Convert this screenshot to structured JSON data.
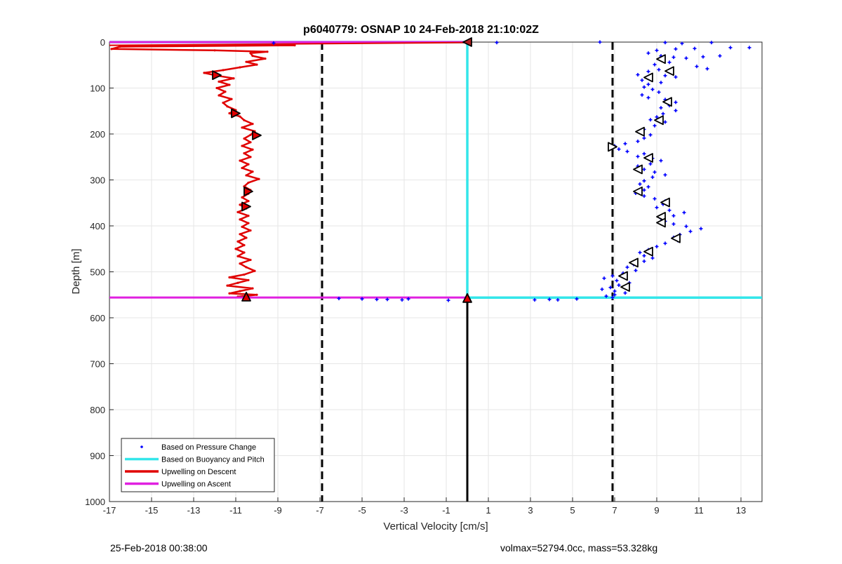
{
  "chart_data": {
    "type": "scatter",
    "title": "p6040779: OSNAP 10 24-Feb-2018 21:10:02Z",
    "xlabel": "Vertical Velocity [cm/s]",
    "ylabel": "Depth [m]",
    "xlim": [
      -17,
      14
    ],
    "ylim": [
      0,
      1000
    ],
    "y_reversed": true,
    "grid": true,
    "x_ticks": [
      -17,
      -15,
      -13,
      -11,
      -9,
      -7,
      -5,
      -3,
      -1,
      1,
      3,
      5,
      7,
      9,
      11,
      13
    ],
    "y_ticks": [
      0,
      100,
      200,
      300,
      400,
      500,
      600,
      700,
      800,
      900,
      1000
    ],
    "legend_position": "bottom-left",
    "colors": {
      "pressure": "#0000ff",
      "buoyancy": "#33e6ea",
      "descent": "#e00000",
      "ascent": "#e020e0",
      "reference": "#000000"
    },
    "reference_lines": [
      {
        "x": -6.9,
        "style": "dashed"
      },
      {
        "x": 6.9,
        "style": "dashed"
      }
    ],
    "vertical_segments": [
      {
        "x": 0,
        "y_from": 558,
        "y_to": 1000,
        "color": "reference"
      }
    ],
    "series": [
      {
        "name": "Based on Pressure Change",
        "kind": "points",
        "points": [
          [
            -9.2,
            2
          ],
          [
            1.4,
            1
          ],
          [
            6.3,
            0
          ],
          [
            9.4,
            1
          ],
          [
            10.2,
            3
          ],
          [
            11.6,
            1
          ],
          [
            13.4,
            12
          ],
          [
            12.5,
            12
          ],
          [
            10.8,
            14
          ],
          [
            9.9,
            15
          ],
          [
            9.0,
            18
          ],
          [
            8.6,
            24
          ],
          [
            9.2,
            30
          ],
          [
            9.8,
            33
          ],
          [
            10.4,
            35
          ],
          [
            11.2,
            32
          ],
          [
            12.0,
            30
          ],
          [
            9.6,
            44
          ],
          [
            8.9,
            49
          ],
          [
            10.9,
            53
          ],
          [
            11.4,
            58
          ],
          [
            9.1,
            60
          ],
          [
            8.6,
            64
          ],
          [
            8.1,
            71
          ],
          [
            9.4,
            73
          ],
          [
            9.9,
            76
          ],
          [
            8.3,
            83
          ],
          [
            9.2,
            88
          ],
          [
            8.6,
            92
          ],
          [
            8.4,
            98
          ],
          [
            8.8,
            103
          ],
          [
            9.1,
            109
          ],
          [
            8.3,
            115
          ],
          [
            8.6,
            121
          ],
          [
            9.4,
            125
          ],
          [
            9.9,
            131
          ],
          [
            9.6,
            138
          ],
          [
            9.2,
            143
          ],
          [
            9.9,
            149
          ],
          [
            9.3,
            156
          ],
          [
            9.0,
            163
          ],
          [
            8.7,
            169
          ],
          [
            9.4,
            174
          ],
          [
            8.9,
            182
          ],
          [
            8.4,
            190
          ],
          [
            8.2,
            196
          ],
          [
            8.7,
            202
          ],
          [
            8.4,
            209
          ],
          [
            8.1,
            216
          ],
          [
            7.5,
            221
          ],
          [
            7.0,
            226
          ],
          [
            7.2,
            233
          ],
          [
            7.6,
            238
          ],
          [
            8.4,
            243
          ],
          [
            8.1,
            249
          ],
          [
            8.8,
            253
          ],
          [
            9.2,
            258
          ],
          [
            8.7,
            265
          ],
          [
            8.1,
            270
          ],
          [
            8.4,
            277
          ],
          [
            8.9,
            283
          ],
          [
            9.4,
            289
          ],
          [
            8.8,
            294
          ],
          [
            8.4,
            302
          ],
          [
            8.2,
            309
          ],
          [
            8.6,
            315
          ],
          [
            8.4,
            322
          ],
          [
            8.0,
            329
          ],
          [
            8.4,
            335
          ],
          [
            8.9,
            341
          ],
          [
            9.4,
            346
          ],
          [
            9.3,
            353
          ],
          [
            9.0,
            360
          ],
          [
            9.6,
            366
          ],
          [
            10.3,
            371
          ],
          [
            9.8,
            378
          ],
          [
            9.2,
            384
          ],
          [
            9.4,
            390
          ],
          [
            9.8,
            396
          ],
          [
            10.4,
            401
          ],
          [
            11.1,
            406
          ],
          [
            10.6,
            412
          ],
          [
            10.1,
            419
          ],
          [
            9.8,
            425
          ],
          [
            10.0,
            432
          ],
          [
            9.4,
            438
          ],
          [
            9.0,
            445
          ],
          [
            8.6,
            452
          ],
          [
            8.2,
            458
          ],
          [
            8.4,
            465
          ],
          [
            8.8,
            470
          ],
          [
            8.4,
            477
          ],
          [
            7.9,
            484
          ],
          [
            7.6,
            490
          ],
          [
            8.0,
            497
          ],
          [
            7.4,
            503
          ],
          [
            6.9,
            509
          ],
          [
            6.5,
            514
          ],
          [
            7.1,
            519
          ],
          [
            7.7,
            524
          ],
          [
            7.2,
            529
          ],
          [
            6.8,
            534
          ],
          [
            6.4,
            538
          ],
          [
            7.0,
            542
          ],
          [
            7.5,
            546
          ],
          [
            7.0,
            550
          ],
          [
            6.6,
            553
          ],
          [
            6.9,
            556
          ],
          [
            -6.1,
            558
          ],
          [
            -5.0,
            559
          ],
          [
            -4.3,
            560
          ],
          [
            -3.8,
            560
          ],
          [
            -3.1,
            561
          ],
          [
            -2.8,
            559
          ],
          [
            -0.9,
            562
          ],
          [
            3.2,
            561
          ],
          [
            3.9,
            560
          ],
          [
            4.3,
            561
          ],
          [
            5.2,
            559
          ]
        ]
      },
      {
        "name": "Based on Buoyancy and Pitch",
        "kind": "line",
        "points": [
          [
            -17,
            0
          ],
          [
            0,
            0
          ],
          [
            0,
            556
          ],
          [
            14,
            556
          ]
        ]
      },
      {
        "name": "Upwelling on Descent",
        "kind": "line",
        "points": [
          [
            -8.2,
            7
          ],
          [
            -16.5,
            10
          ],
          [
            -16.9,
            15
          ],
          [
            -12.0,
            18
          ],
          [
            -9.5,
            21
          ],
          [
            -10.3,
            24
          ],
          [
            -10.2,
            30
          ],
          [
            -9.6,
            36
          ],
          [
            -10.5,
            43
          ],
          [
            -10.0,
            49
          ],
          [
            -10.8,
            55
          ],
          [
            -11.6,
            61
          ],
          [
            -12.5,
            67
          ],
          [
            -11.9,
            73
          ],
          [
            -11.1,
            79
          ],
          [
            -11.8,
            86
          ],
          [
            -11.3,
            93
          ],
          [
            -11.9,
            100
          ],
          [
            -11.5,
            108
          ],
          [
            -11.8,
            116
          ],
          [
            -11.2,
            124
          ],
          [
            -11.6,
            132
          ],
          [
            -11.4,
            140
          ],
          [
            -11.0,
            148
          ],
          [
            -11.3,
            155
          ],
          [
            -10.8,
            162
          ],
          [
            -10.6,
            170
          ],
          [
            -10.2,
            178
          ],
          [
            -10.7,
            186
          ],
          [
            -10.1,
            194
          ],
          [
            -10.3,
            202
          ],
          [
            -10.6,
            210
          ],
          [
            -10.3,
            218
          ],
          [
            -10.7,
            226
          ],
          [
            -10.2,
            234
          ],
          [
            -10.6,
            242
          ],
          [
            -10.3,
            250
          ],
          [
            -10.8,
            258
          ],
          [
            -10.4,
            266
          ],
          [
            -10.7,
            274
          ],
          [
            -10.2,
            282
          ],
          [
            -10.5,
            290
          ],
          [
            -9.9,
            298
          ],
          [
            -10.4,
            306
          ],
          [
            -10.6,
            314
          ],
          [
            -10.3,
            322
          ],
          [
            -10.4,
            330
          ],
          [
            -10.7,
            338
          ],
          [
            -10.4,
            346
          ],
          [
            -10.8,
            354
          ],
          [
            -10.5,
            362
          ],
          [
            -10.9,
            370
          ],
          [
            -10.4,
            378
          ],
          [
            -10.8,
            386
          ],
          [
            -10.4,
            394
          ],
          [
            -10.7,
            402
          ],
          [
            -10.3,
            410
          ],
          [
            -10.8,
            418
          ],
          [
            -10.5,
            426
          ],
          [
            -10.9,
            434
          ],
          [
            -10.6,
            442
          ],
          [
            -11.0,
            450
          ],
          [
            -10.6,
            458
          ],
          [
            -10.9,
            466
          ],
          [
            -10.3,
            474
          ],
          [
            -10.8,
            482
          ],
          [
            -10.5,
            490
          ],
          [
            -10.1,
            498
          ],
          [
            -10.6,
            506
          ],
          [
            -11.3,
            512
          ],
          [
            -10.4,
            518
          ],
          [
            -10.9,
            524
          ],
          [
            -11.4,
            530
          ],
          [
            -10.2,
            536
          ],
          [
            -10.8,
            542
          ],
          [
            -11.3,
            547
          ],
          [
            -10.0,
            550
          ],
          [
            -10.9,
            554
          ]
        ]
      },
      {
        "name": "Upwelling on Ascent",
        "kind": "line",
        "points": [
          [
            -17,
            0
          ],
          [
            0,
            0
          ],
          [
            -17,
            556
          ],
          [
            0,
            556
          ]
        ]
      }
    ],
    "markers": [
      {
        "x": 0,
        "y": 0,
        "shape": "left",
        "color": "#b02020"
      },
      {
        "x": -11.9,
        "y": 72,
        "shape": "right",
        "color": "#e00000"
      },
      {
        "x": -11.0,
        "y": 155,
        "shape": "right",
        "color": "#e00000"
      },
      {
        "x": -10.0,
        "y": 203,
        "shape": "right",
        "color": "#e00000"
      },
      {
        "x": -10.4,
        "y": 325,
        "shape": "right",
        "color": "#e00000"
      },
      {
        "x": -10.5,
        "y": 358,
        "shape": "right",
        "color": "#e00000"
      },
      {
        "x": -10.5,
        "y": 554,
        "shape": "up",
        "color": "#e00000"
      },
      {
        "x": 0,
        "y": 557,
        "shape": "up",
        "color": "#e00000"
      },
      {
        "x": 9.2,
        "y": 37,
        "shape": "left",
        "color": "#ffffff"
      },
      {
        "x": 9.6,
        "y": 63,
        "shape": "left",
        "color": "#ffffff"
      },
      {
        "x": 8.6,
        "y": 77,
        "shape": "left",
        "color": "#ffffff"
      },
      {
        "x": 9.5,
        "y": 130,
        "shape": "left",
        "color": "#ffffff"
      },
      {
        "x": 9.1,
        "y": 170,
        "shape": "left",
        "color": "#ffffff"
      },
      {
        "x": 8.2,
        "y": 195,
        "shape": "left",
        "color": "#ffffff"
      },
      {
        "x": 6.9,
        "y": 228,
        "shape": "right",
        "color": "#ffffff"
      },
      {
        "x": 8.6,
        "y": 252,
        "shape": "left",
        "color": "#ffffff"
      },
      {
        "x": 8.1,
        "y": 277,
        "shape": "left",
        "color": "#ffffff"
      },
      {
        "x": 8.1,
        "y": 325,
        "shape": "left",
        "color": "#ffffff"
      },
      {
        "x": 9.4,
        "y": 349,
        "shape": "left",
        "color": "#ffffff"
      },
      {
        "x": 9.2,
        "y": 380,
        "shape": "left",
        "color": "#ffffff"
      },
      {
        "x": 9.2,
        "y": 393,
        "shape": "left",
        "color": "#ffffff"
      },
      {
        "x": 9.9,
        "y": 427,
        "shape": "left",
        "color": "#ffffff"
      },
      {
        "x": 8.6,
        "y": 456,
        "shape": "left",
        "color": "#ffffff"
      },
      {
        "x": 7.9,
        "y": 480,
        "shape": "left",
        "color": "#ffffff"
      },
      {
        "x": 7.4,
        "y": 509,
        "shape": "left",
        "color": "#ffffff"
      },
      {
        "x": 7.5,
        "y": 533,
        "shape": "left",
        "color": "#ffffff"
      }
    ]
  },
  "footer": {
    "left": "25-Feb-2018 00:38:00",
    "right": "volmax=52794.0cc, mass=53.328kg"
  }
}
